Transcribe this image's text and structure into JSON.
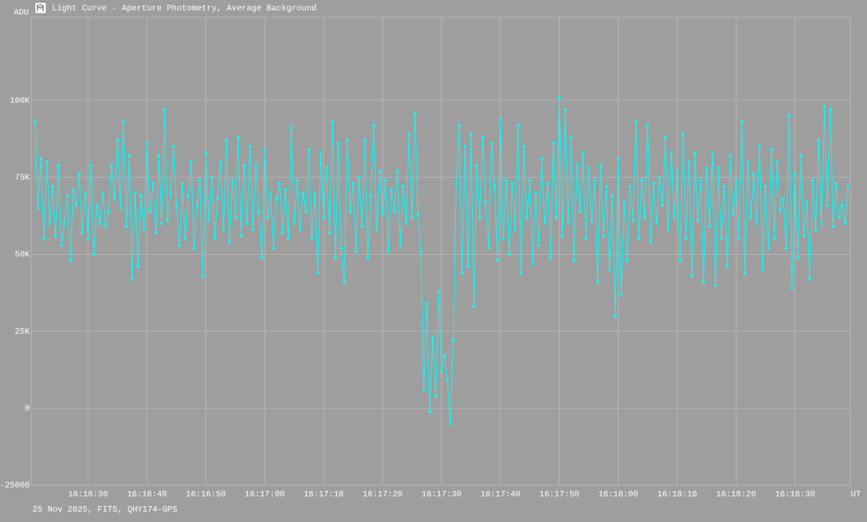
{
  "chart_data": {
    "type": "line",
    "title": "Light Curve - Aperture Photometry, Average Background",
    "y_label": "ADU",
    "x_label": "UT",
    "footer": "25 Nov 2025, FITS, QHY174-GPS",
    "color": "#00ffff",
    "grid": true,
    "ylim": [
      -25000,
      127000
    ],
    "yticks": [
      -25000,
      0,
      {
        "value": 25000,
        "label": "25K"
      },
      {
        "value": 50000,
        "label": "50K"
      },
      {
        "value": 75000,
        "label": "75K"
      },
      {
        "value": 100000,
        "label": "100K"
      }
    ],
    "xlim": [
      58580.35,
      58719.4
    ],
    "xticks": [
      {
        "value": 58590,
        "label": "16:16:30"
      },
      {
        "value": 58600,
        "label": "16:16:40"
      },
      {
        "value": 58610,
        "label": "16:16:50"
      },
      {
        "value": 58620,
        "label": "16:17:00"
      },
      {
        "value": 58630,
        "label": "16:17:10"
      },
      {
        "value": 58640,
        "label": "16:17:20"
      },
      {
        "value": 58650,
        "label": "16:17:30"
      },
      {
        "value": 58660,
        "label": "16:17:40"
      },
      {
        "value": 58670,
        "label": "16:17:50"
      },
      {
        "value": 58680,
        "label": "16:18:00"
      },
      {
        "value": 58690,
        "label": "16:18:10"
      },
      {
        "value": 58700,
        "label": "16:18:20"
      },
      {
        "value": 58710,
        "label": "16:18:30"
      }
    ],
    "x": [
      58581,
      58581.5,
      58582,
      58582.5,
      58583,
      58583.5,
      58584,
      58584.5,
      58585,
      58585.5,
      58586,
      58586.5,
      58587,
      58587.5,
      58588,
      58588.5,
      58589,
      58589.5,
      58590,
      58590.5,
      58591,
      58591.5,
      58592,
      58592.5,
      58593,
      58593.5,
      58594,
      58594.5,
      58595,
      58595.5,
      58596,
      58596.5,
      58597,
      58597.5,
      58598,
      58598.5,
      58599,
      58599.5,
      58600,
      58600.5,
      58601,
      58601.5,
      58602,
      58602.5,
      58603,
      58603.5,
      58604,
      58604.5,
      58605,
      58605.5,
      58606,
      58606.5,
      58607,
      58607.5,
      58608,
      58608.5,
      58609,
      58609.5,
      58610,
      58610.5,
      58611,
      58611.5,
      58612,
      58612.5,
      58613,
      58613.5,
      58614,
      58614.5,
      58615,
      58615.5,
      58616,
      58616.5,
      58617,
      58617.5,
      58618,
      58618.5,
      58619,
      58619.5,
      58620,
      58620.5,
      58621,
      58621.5,
      58622,
      58622.5,
      58623,
      58623.5,
      58624,
      58624.5,
      58625,
      58625.5,
      58626,
      58626.5,
      58627,
      58627.5,
      58628,
      58628.5,
      58629,
      58629.5,
      58630,
      58630.5,
      58631,
      58631.5,
      58632,
      58632.5,
      58633,
      58633.5,
      58634,
      58634.5,
      58635,
      58635.5,
      58636,
      58636.5,
      58637,
      58637.5,
      58638,
      58638.5,
      58639,
      58639.5,
      58640,
      58640.5,
      58641,
      58641.5,
      58642,
      58642.5,
      58643,
      58643.5,
      58644,
      58644.5,
      58645,
      58645.5,
      58646,
      58646.5,
      58647,
      58647.5,
      58648,
      58648.5,
      58649,
      58649.5,
      58650,
      58650.5,
      58651,
      58651.5,
      58652,
      58652.5,
      58653,
      58653.5,
      58654,
      58654.5,
      58655,
      58655.5,
      58656,
      58656.5,
      58657,
      58657.5,
      58658,
      58658.5,
      58659,
      58659.5,
      58660,
      58660.5,
      58661,
      58661.5,
      58662,
      58662.5,
      58663,
      58663.5,
      58664,
      58664.5,
      58665,
      58665.5,
      58666,
      58666.5,
      58667,
      58667.5,
      58668,
      58668.5,
      58669,
      58669.5,
      58670,
      58670.5,
      58671,
      58671.5,
      58672,
      58672.5,
      58673,
      58673.5,
      58674,
      58674.5,
      58675,
      58675.5,
      58676,
      58676.5,
      58677,
      58677.5,
      58678,
      58678.5,
      58679,
      58679.5,
      58680,
      58680.5,
      58681,
      58681.5,
      58682,
      58682.5,
      58683,
      58683.5,
      58684,
      58684.5,
      58685,
      58685.5,
      58686,
      58686.5,
      58687,
      58687.5,
      58688,
      58688.5,
      58689,
      58689.5,
      58690,
      58690.5,
      58691,
      58691.5,
      58692,
      58692.5,
      58693,
      58693.5,
      58694,
      58694.5,
      58695,
      58695.5,
      58696,
      58696.5,
      58697,
      58697.5,
      58698,
      58698.5,
      58699,
      58699.5,
      58700,
      58700.5,
      58701,
      58701.5,
      58702,
      58702.5,
      58703,
      58703.5,
      58704,
      58704.5,
      58705,
      58705.5,
      58706,
      58706.5,
      58707,
      58707.5,
      58708,
      58708.5,
      58709,
      58709.5,
      58710,
      58710.5,
      58711,
      58711.5,
      58712,
      58712.5,
      58713,
      58713.5,
      58714,
      58714.5,
      58715,
      58715.5,
      58716,
      58716.5,
      58717,
      58717.5,
      58718,
      58718.5,
      58719
    ],
    "values": [
      93000,
      65000,
      81000,
      55000,
      80000,
      60000,
      72000,
      56000,
      79000,
      53000,
      60000,
      69000,
      48000,
      71000,
      66000,
      76000,
      57000,
      70000,
      55000,
      79000,
      50000,
      66000,
      60000,
      70000,
      59000,
      64000,
      79000,
      68000,
      87000,
      65000,
      93000,
      59000,
      82000,
      42000,
      70000,
      46000,
      69000,
      58000,
      86000,
      64000,
      73000,
      57000,
      82000,
      60000,
      97000,
      61000,
      70000,
      85000,
      66000,
      53000,
      73000,
      55000,
      69000,
      80000,
      52000,
      66000,
      74000,
      43000,
      83000,
      61000,
      75000,
      55000,
      68000,
      80000,
      58000,
      87000,
      54000,
      74000,
      62000,
      88000,
      56000,
      79000,
      60000,
      85000,
      58000,
      79000,
      64000,
      49000,
      84000,
      62000,
      70000,
      52000,
      68000,
      73000,
      57000,
      71000,
      55000,
      91000,
      60000,
      74000,
      58000,
      70000,
      64000,
      84000,
      55000,
      70000,
      44000,
      83000,
      62000,
      78000,
      57000,
      93000,
      49000,
      86000,
      52000,
      41000,
      87000,
      64000,
      73000,
      51000,
      75000,
      59000,
      87000,
      49000,
      69000,
      92000,
      58000,
      77000,
      63000,
      74000,
      51000,
      71000,
      64000,
      77000,
      53000,
      72000,
      60000,
      89000,
      62000,
      96000,
      63000,
      51000,
      6000,
      34000,
      -1000,
      23000,
      4000,
      38000,
      12000,
      17000,
      9000,
      -5000,
      22000,
      73000,
      92000,
      44000,
      85000,
      46000,
      89000,
      33000,
      79000,
      62000,
      88000,
      67000,
      52000,
      86000,
      72000,
      48000,
      94000,
      55000,
      74000,
      50000,
      73000,
      58000,
      92000,
      44000,
      85000,
      62000,
      74000,
      47000,
      70000,
      53000,
      81000,
      60000,
      73000,
      49000,
      86000,
      62000,
      101000,
      56000,
      97000,
      60000,
      88000,
      48000,
      79000,
      64000,
      83000,
      55000,
      78000,
      61000,
      74000,
      41000,
      79000,
      56000,
      72000,
      45000,
      69000,
      30000,
      81000,
      37000,
      67000,
      48000,
      72000,
      61000,
      93000,
      55000,
      74000,
      62000,
      92000,
      54000,
      73000,
      60000,
      75000,
      66000,
      88000,
      58000,
      83000,
      62000,
      77000,
      48000,
      89000,
      55000,
      80000,
      43000,
      83000,
      61000,
      74000,
      41000,
      78000,
      59000,
      83000,
      40000,
      78000,
      55000,
      72000,
      46000,
      82000,
      63000,
      74000,
      55000,
      93000,
      44000,
      80000,
      62000,
      76000,
      60000,
      85000,
      45000,
      72000,
      52000,
      84000,
      55000,
      80000,
      64000,
      68000,
      52000,
      95000,
      39000,
      76000,
      49000,
      82000,
      56000,
      67000,
      42000,
      74000,
      58000,
      87000,
      60000,
      98000,
      66000,
      97000,
      59000,
      73000,
      62000,
      66000,
      60000,
      72000
    ]
  }
}
